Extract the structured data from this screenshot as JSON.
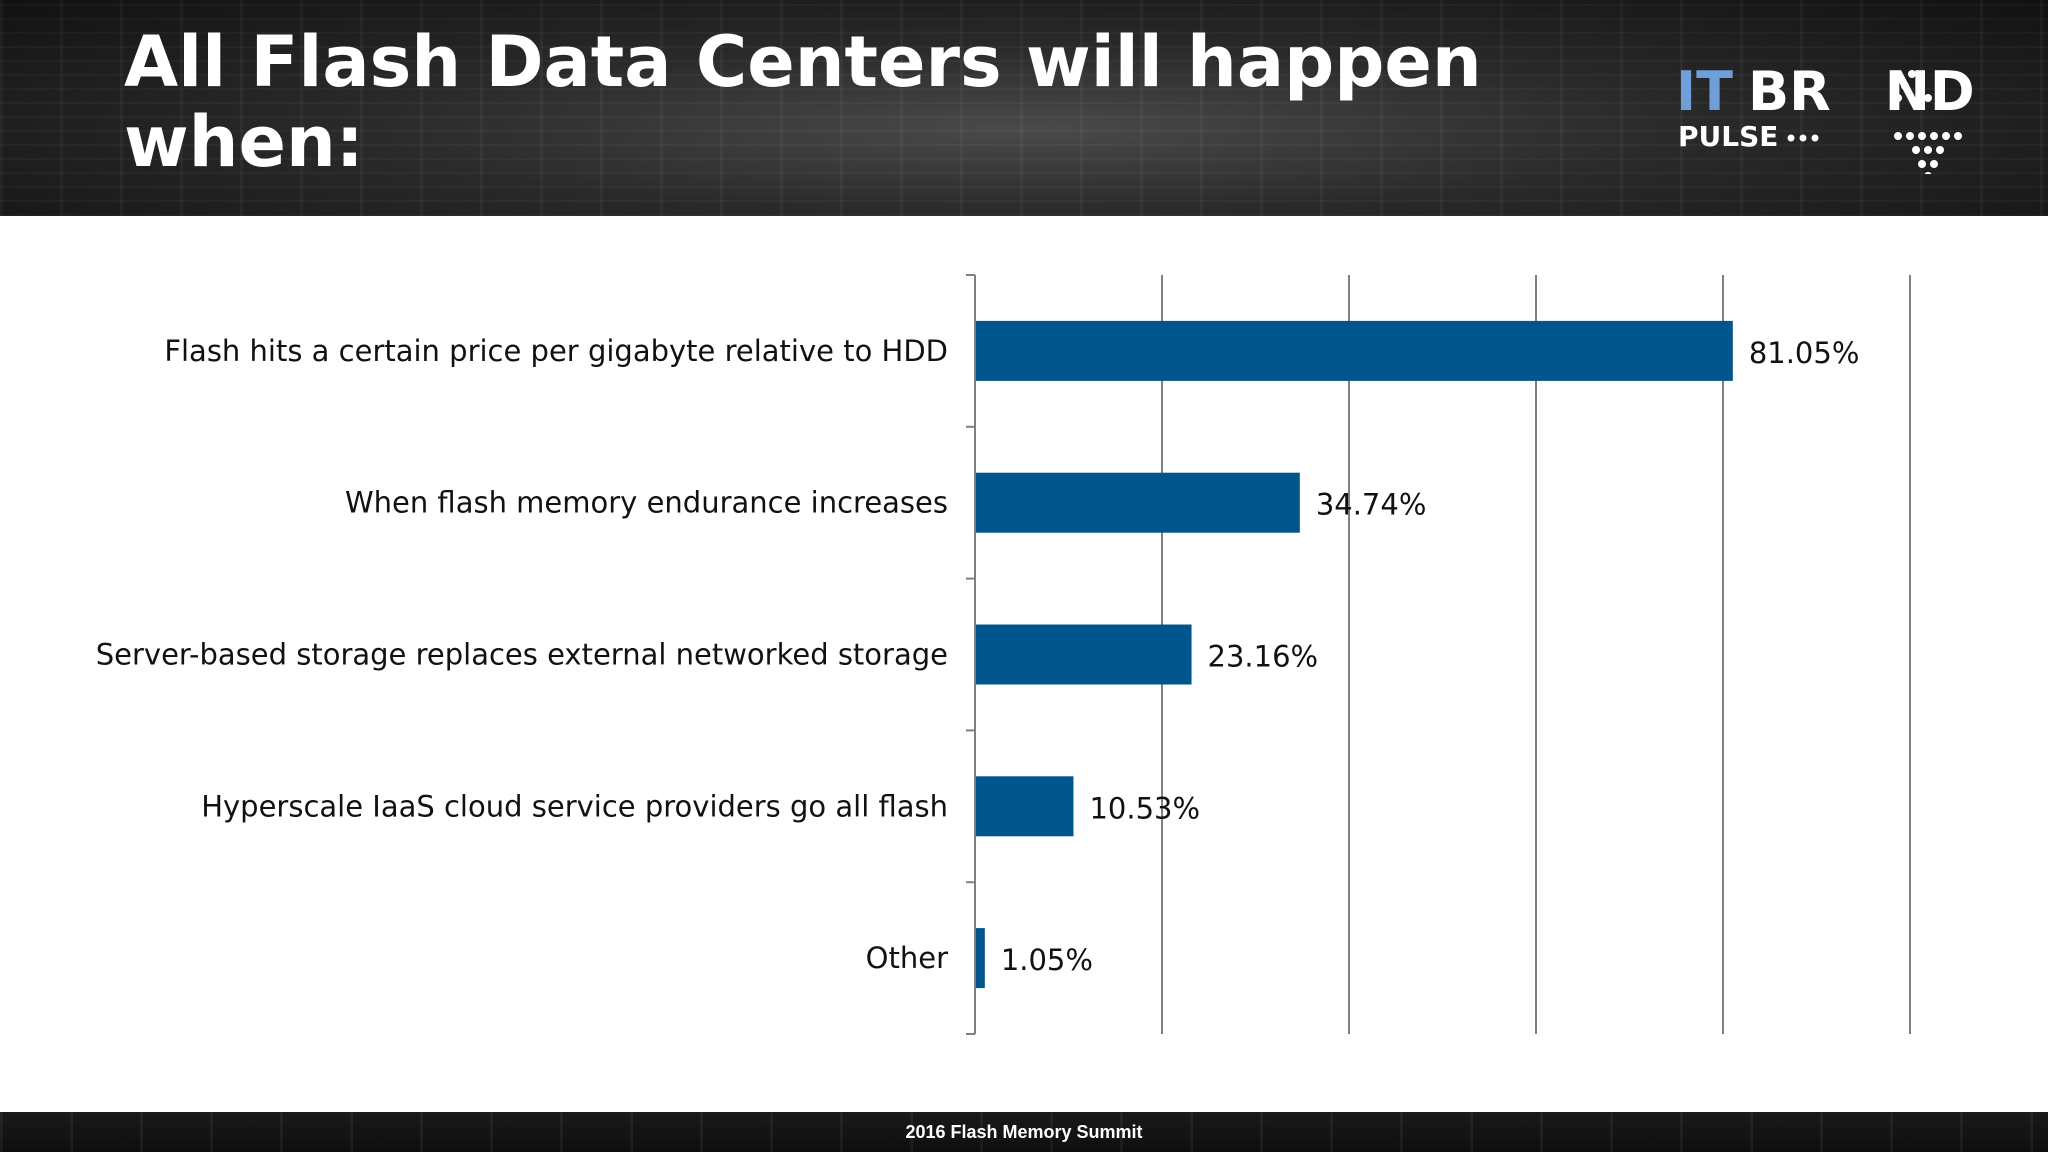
{
  "slide": {
    "title": "All Flash Data Centers will happen when:",
    "footer": "2016 Flash Memory Summit"
  },
  "logo": {
    "word_it": "IT",
    "word_brand": "BR ND",
    "word_pulse": "PULSE",
    "colors": {
      "it": "#6f9fd8",
      "brand": "#ffffff"
    }
  },
  "colors": {
    "bar": "#00558c",
    "grid": "#808080"
  },
  "chart_data": {
    "type": "bar",
    "orientation": "horizontal",
    "categories": [
      "Flash hits a certain price per gigabyte relative to HDD",
      "When flash memory endurance increases",
      "Server-based storage replaces external networked storage",
      "Hyperscale IaaS cloud service providers go all flash",
      "Other"
    ],
    "values": [
      81.05,
      34.74,
      23.16,
      10.53,
      1.05
    ],
    "value_labels": [
      "81.05%",
      "34.74%",
      "23.16%",
      "10.53%",
      "1.05%"
    ],
    "xlim": [
      0,
      100
    ],
    "vertical_gridlines": true,
    "title": "",
    "xlabel": "",
    "ylabel": ""
  }
}
